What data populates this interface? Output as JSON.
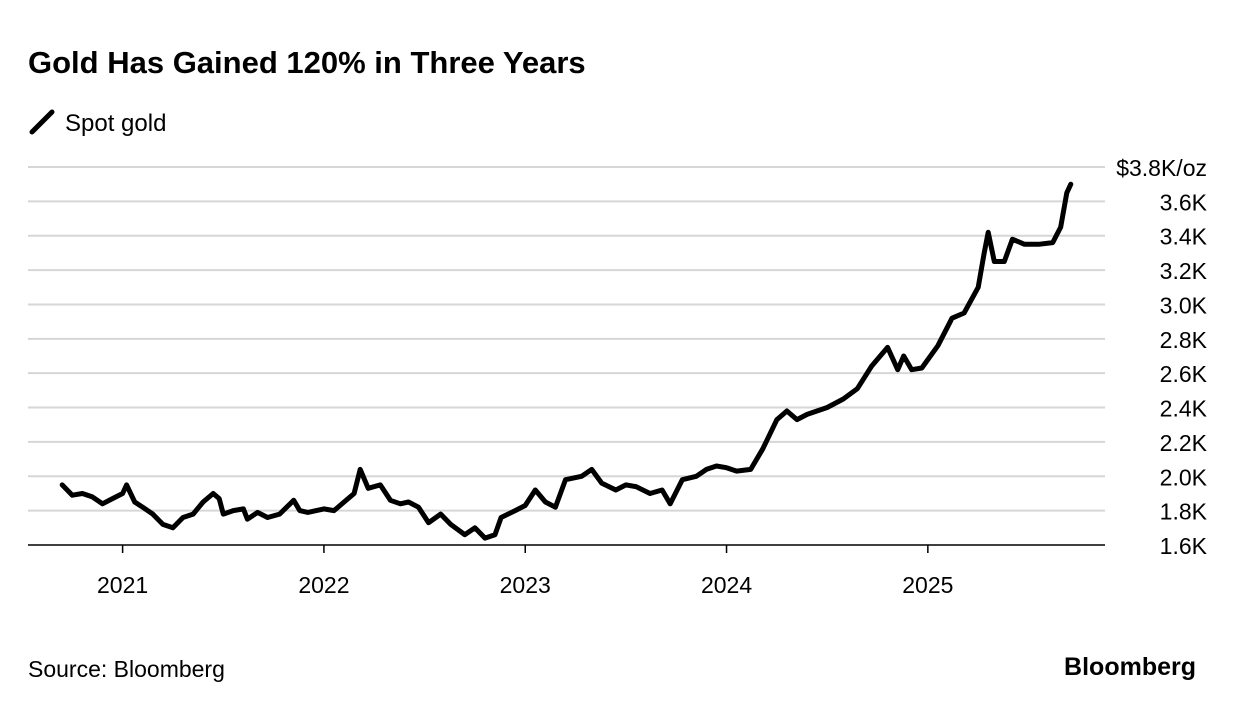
{
  "chart_data": {
    "type": "line",
    "title": "Gold Has Gained 120% in Three Years",
    "source": "Source: Bloomberg",
    "brand": "Bloomberg",
    "series": [
      {
        "name": "Spot gold",
        "color": "#000000",
        "x": [
          2020.7,
          2020.75,
          2020.8,
          2020.85,
          2020.9,
          2020.95,
          2021.0,
          2021.02,
          2021.06,
          2021.1,
          2021.15,
          2021.2,
          2021.25,
          2021.3,
          2021.35,
          2021.4,
          2021.45,
          2021.48,
          2021.5,
          2021.55,
          2021.6,
          2021.62,
          2021.67,
          2021.72,
          2021.78,
          2021.85,
          2021.88,
          2021.92,
          2022.0,
          2022.05,
          2022.1,
          2022.15,
          2022.18,
          2022.22,
          2022.28,
          2022.33,
          2022.38,
          2022.42,
          2022.47,
          2022.52,
          2022.58,
          2022.63,
          2022.7,
          2022.75,
          2022.8,
          2022.85,
          2022.88,
          2022.95,
          2023.0,
          2023.05,
          2023.1,
          2023.15,
          2023.2,
          2023.28,
          2023.33,
          2023.38,
          2023.45,
          2023.5,
          2023.55,
          2023.62,
          2023.68,
          2023.72,
          2023.78,
          2023.85,
          2023.9,
          2023.95,
          2024.0,
          2024.05,
          2024.12,
          2024.18,
          2024.25,
          2024.3,
          2024.35,
          2024.4,
          2024.5,
          2024.58,
          2024.65,
          2024.72,
          2024.8,
          2024.85,
          2024.88,
          2024.92,
          2024.97,
          2025.05,
          2025.12,
          2025.18,
          2025.25,
          2025.28,
          2025.3,
          2025.33,
          2025.38,
          2025.42,
          2025.48,
          2025.55,
          2025.62,
          2025.66,
          2025.69,
          2025.71
        ],
        "values": [
          1950,
          1890,
          1900,
          1880,
          1840,
          1870,
          1900,
          1950,
          1850,
          1820,
          1780,
          1720,
          1700,
          1760,
          1780,
          1850,
          1900,
          1870,
          1780,
          1800,
          1810,
          1750,
          1790,
          1760,
          1780,
          1860,
          1800,
          1790,
          1810,
          1800,
          1850,
          1900,
          2040,
          1930,
          1950,
          1860,
          1840,
          1850,
          1820,
          1730,
          1780,
          1720,
          1660,
          1700,
          1640,
          1660,
          1760,
          1800,
          1830,
          1920,
          1850,
          1820,
          1980,
          2000,
          2040,
          1960,
          1920,
          1950,
          1940,
          1900,
          1920,
          1840,
          1980,
          2000,
          2040,
          2060,
          2050,
          2030,
          2040,
          2160,
          2330,
          2380,
          2330,
          2360,
          2400,
          2450,
          2510,
          2640,
          2750,
          2620,
          2700,
          2620,
          2630,
          2760,
          2920,
          2950,
          3100,
          3300,
          3420,
          3250,
          3250,
          3380,
          3350,
          3350,
          3360,
          3450,
          3650,
          3700
        ]
      }
    ],
    "xlim": [
      2020.53,
      2025.88
    ],
    "xticks": [
      2021,
      2022,
      2023,
      2024,
      2025
    ],
    "ylim": [
      1600,
      3800
    ],
    "yticks": [
      {
        "value": 1600,
        "label": "1.6K"
      },
      {
        "value": 1800,
        "label": "1.8K"
      },
      {
        "value": 2000,
        "label": "2.0K"
      },
      {
        "value": 2200,
        "label": "2.2K"
      },
      {
        "value": 2400,
        "label": "2.4K"
      },
      {
        "value": 2600,
        "label": "2.6K"
      },
      {
        "value": 2800,
        "label": "2.8K"
      },
      {
        "value": 3000,
        "label": "3.0K"
      },
      {
        "value": 3200,
        "label": "3.2K"
      },
      {
        "value": 3400,
        "label": "3.4K"
      },
      {
        "value": 3600,
        "label": "3.6K"
      },
      {
        "value": 3800,
        "label": "$3.8K/oz"
      }
    ],
    "grid": true
  }
}
